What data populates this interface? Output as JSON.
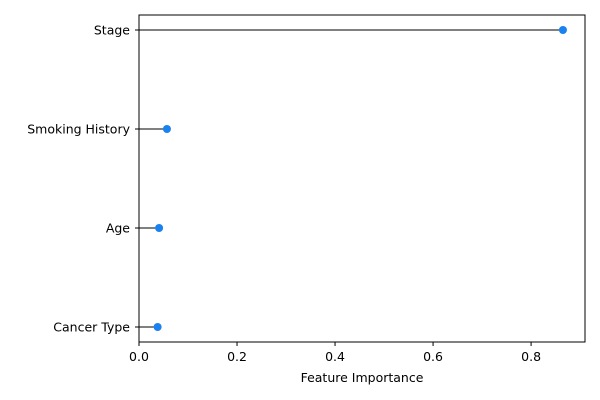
{
  "chart_data": {
    "type": "lollipop",
    "orientation": "horizontal",
    "categories": [
      "Stage",
      "Smoking History",
      "Age",
      "Cancer Type"
    ],
    "values": [
      0.865,
      0.057,
      0.041,
      0.038
    ],
    "xlabel": "Feature Importance",
    "ylabel": "",
    "title": "",
    "xlim": [
      0,
      0.91
    ],
    "xticks": [
      0.0,
      0.2,
      0.4,
      0.6,
      0.8
    ],
    "xtick_labels": [
      "0.0",
      "0.2",
      "0.4",
      "0.6",
      "0.8"
    ],
    "grid": false,
    "legend": "none",
    "colors": {
      "marker": "#1982f0",
      "stem": "#000000",
      "frame": "#000000"
    }
  }
}
